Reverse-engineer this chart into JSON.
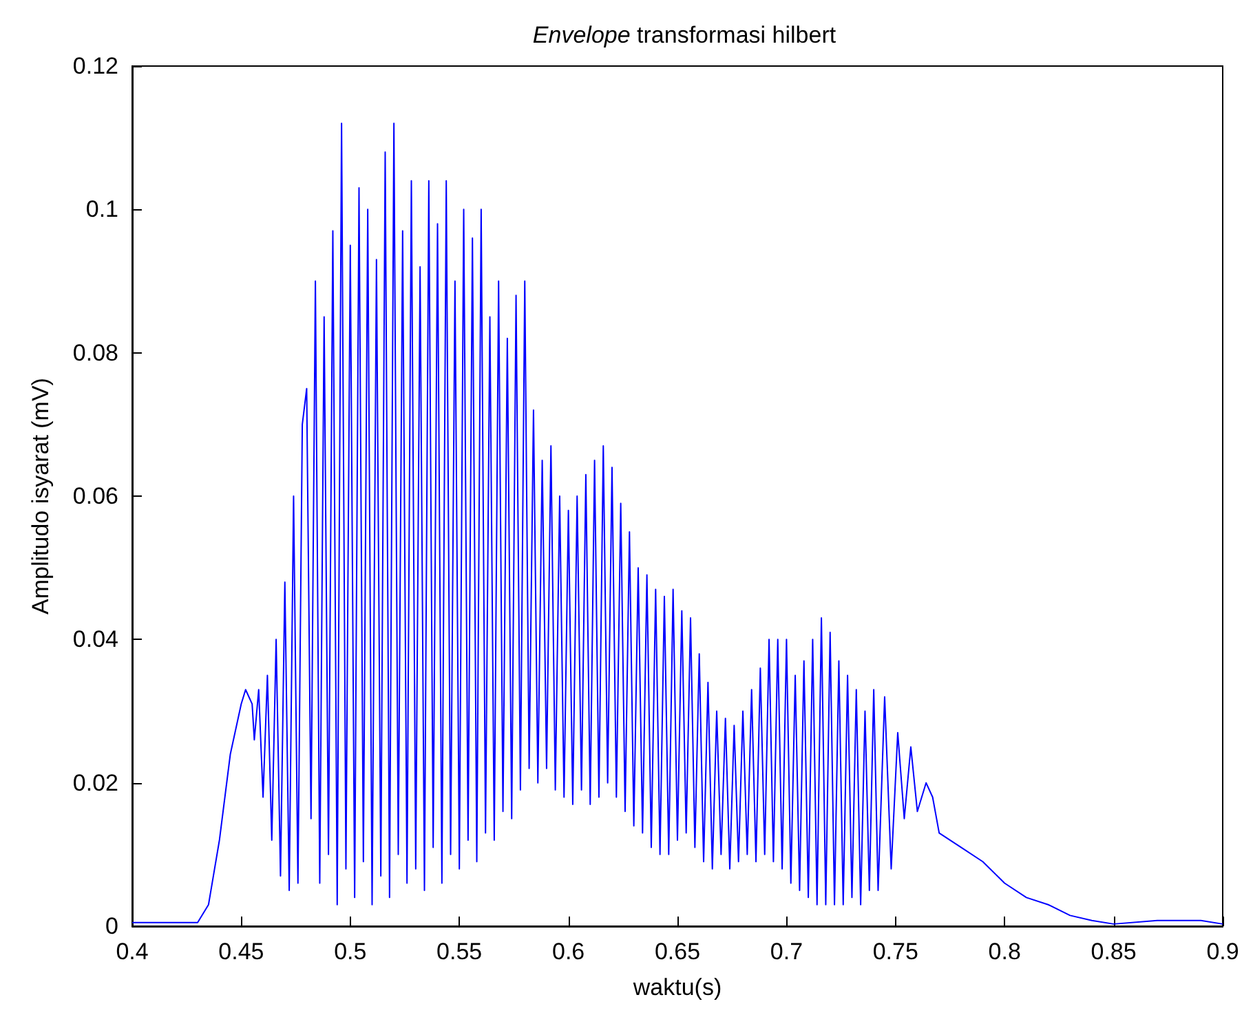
{
  "chart_data": {
    "type": "line",
    "title": "Envelope transformasi hilbert",
    "xlabel": "waktu(s)",
    "ylabel": "Amplitudo isyarat (mV)",
    "xlim": [
      0.4,
      0.9
    ],
    "xticks": [
      0.4,
      0.45,
      0.5,
      0.55,
      0.6,
      0.65,
      0.7,
      0.75,
      0.8,
      0.85,
      0.9
    ],
    "ylim": [
      0,
      0.12
    ],
    "yticks": [
      0,
      0.02,
      0.04,
      0.06,
      0.08,
      0.1,
      0.12
    ],
    "marker": "none",
    "line_style": "solid",
    "series": [
      {
        "color": "#0000ff",
        "x": [
          0.4,
          0.43,
          0.435,
          0.44,
          0.445,
          0.45,
          0.452,
          0.455,
          0.456,
          0.458,
          0.46,
          0.462,
          0.464,
          0.466,
          0.468,
          0.47,
          0.472,
          0.474,
          0.476,
          0.478,
          0.48,
          0.482,
          0.484,
          0.486,
          0.488,
          0.49,
          0.492,
          0.494,
          0.496,
          0.498,
          0.5,
          0.502,
          0.504,
          0.506,
          0.508,
          0.51,
          0.512,
          0.514,
          0.516,
          0.518,
          0.52,
          0.522,
          0.524,
          0.526,
          0.528,
          0.53,
          0.532,
          0.534,
          0.536,
          0.538,
          0.54,
          0.542,
          0.544,
          0.546,
          0.548,
          0.55,
          0.552,
          0.554,
          0.556,
          0.558,
          0.56,
          0.562,
          0.564,
          0.566,
          0.568,
          0.57,
          0.572,
          0.574,
          0.576,
          0.578,
          0.58,
          0.582,
          0.584,
          0.586,
          0.588,
          0.59,
          0.592,
          0.594,
          0.596,
          0.598,
          0.6,
          0.602,
          0.604,
          0.606,
          0.608,
          0.61,
          0.612,
          0.614,
          0.616,
          0.618,
          0.62,
          0.622,
          0.624,
          0.626,
          0.628,
          0.63,
          0.632,
          0.634,
          0.636,
          0.638,
          0.64,
          0.642,
          0.644,
          0.646,
          0.648,
          0.65,
          0.652,
          0.654,
          0.656,
          0.658,
          0.66,
          0.662,
          0.664,
          0.666,
          0.668,
          0.67,
          0.672,
          0.674,
          0.676,
          0.678,
          0.68,
          0.682,
          0.684,
          0.686,
          0.688,
          0.69,
          0.692,
          0.694,
          0.696,
          0.698,
          0.7,
          0.702,
          0.704,
          0.706,
          0.708,
          0.71,
          0.712,
          0.714,
          0.716,
          0.718,
          0.72,
          0.722,
          0.724,
          0.726,
          0.728,
          0.73,
          0.732,
          0.734,
          0.736,
          0.738,
          0.74,
          0.742,
          0.745,
          0.748,
          0.751,
          0.754,
          0.757,
          0.76,
          0.764,
          0.767,
          0.77,
          0.78,
          0.79,
          0.8,
          0.81,
          0.82,
          0.83,
          0.84,
          0.85,
          0.87,
          0.89,
          0.9
        ],
        "values": [
          0.0005,
          0.0005,
          0.003,
          0.012,
          0.024,
          0.031,
          0.033,
          0.031,
          0.026,
          0.033,
          0.018,
          0.035,
          0.012,
          0.04,
          0.007,
          0.048,
          0.005,
          0.06,
          0.006,
          0.07,
          0.075,
          0.015,
          0.09,
          0.006,
          0.085,
          0.01,
          0.097,
          0.003,
          0.112,
          0.008,
          0.095,
          0.004,
          0.103,
          0.009,
          0.1,
          0.003,
          0.093,
          0.007,
          0.108,
          0.004,
          0.112,
          0.01,
          0.097,
          0.006,
          0.104,
          0.008,
          0.092,
          0.005,
          0.104,
          0.011,
          0.098,
          0.006,
          0.104,
          0.01,
          0.09,
          0.008,
          0.1,
          0.012,
          0.096,
          0.009,
          0.1,
          0.013,
          0.085,
          0.012,
          0.09,
          0.016,
          0.082,
          0.015,
          0.088,
          0.019,
          0.09,
          0.022,
          0.072,
          0.02,
          0.065,
          0.022,
          0.067,
          0.019,
          0.06,
          0.018,
          0.058,
          0.017,
          0.06,
          0.019,
          0.063,
          0.017,
          0.065,
          0.018,
          0.067,
          0.02,
          0.064,
          0.018,
          0.059,
          0.016,
          0.055,
          0.014,
          0.05,
          0.013,
          0.049,
          0.011,
          0.047,
          0.01,
          0.046,
          0.01,
          0.047,
          0.012,
          0.044,
          0.013,
          0.043,
          0.011,
          0.038,
          0.009,
          0.034,
          0.008,
          0.03,
          0.01,
          0.029,
          0.008,
          0.028,
          0.009,
          0.03,
          0.01,
          0.033,
          0.009,
          0.036,
          0.01,
          0.04,
          0.009,
          0.04,
          0.008,
          0.04,
          0.006,
          0.035,
          0.005,
          0.037,
          0.004,
          0.04,
          0.003,
          0.043,
          0.003,
          0.041,
          0.003,
          0.037,
          0.003,
          0.035,
          0.004,
          0.033,
          0.003,
          0.03,
          0.005,
          0.033,
          0.005,
          0.032,
          0.008,
          0.027,
          0.015,
          0.025,
          0.016,
          0.02,
          0.018,
          0.013,
          0.011,
          0.009,
          0.006,
          0.004,
          0.003,
          0.0015,
          0.0008,
          0.0003,
          0.0008,
          0.0008,
          0.0003
        ]
      }
    ]
  }
}
